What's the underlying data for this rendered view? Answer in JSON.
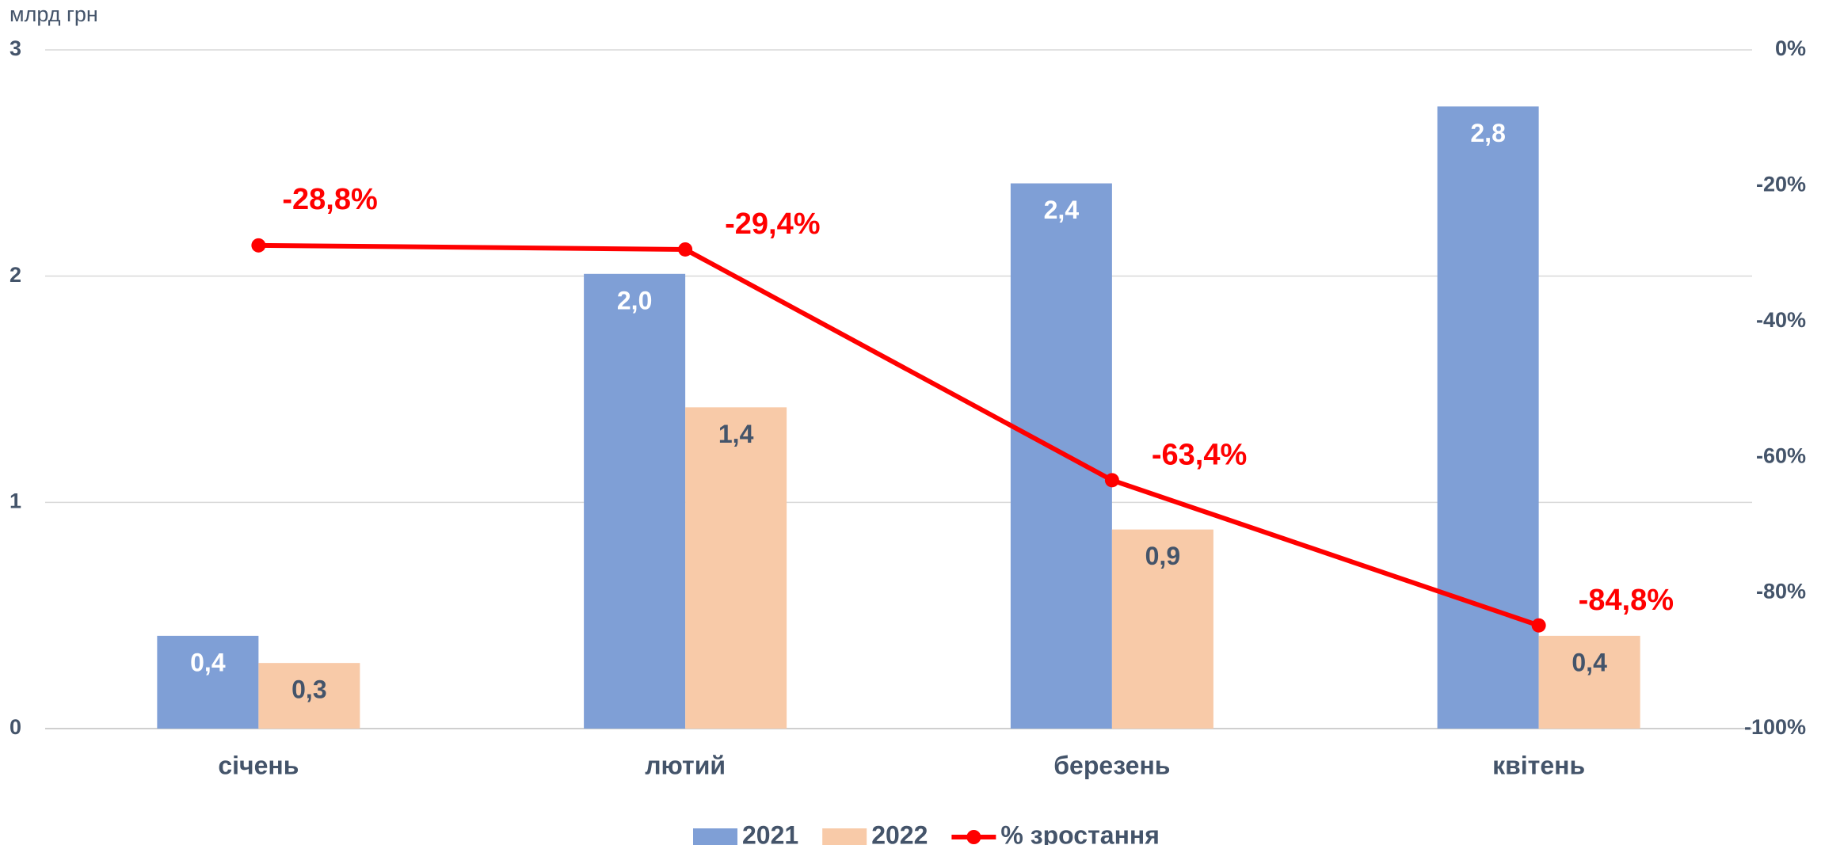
{
  "chart_data": {
    "type": "bar",
    "y_label": "млрд грн",
    "categories": [
      "січень",
      "лютий",
      "березень",
      "квітень"
    ],
    "series": [
      {
        "name": "2021",
        "color": "#7f9fd6",
        "values": [
          0.41,
          2.01,
          2.41,
          2.75
        ],
        "value_labels": [
          "0,4",
          "2,0",
          "2,4",
          "2,8"
        ]
      },
      {
        "name": "2022",
        "color": "#f8caa8",
        "values": [
          0.29,
          1.42,
          0.88,
          0.41
        ],
        "value_labels": [
          "0,3",
          "1,4",
          "0,9",
          "0,4"
        ]
      },
      {
        "name": "% зростання",
        "type": "line",
        "axis": "y2",
        "color": "#ff0000",
        "values": [
          -28.8,
          -29.4,
          -63.4,
          -84.8
        ],
        "value_labels": [
          "-28,8%",
          "-29,4%",
          "-63,4%",
          "-84,8%"
        ]
      }
    ],
    "ylim": [
      0,
      3
    ],
    "yticks": [
      0,
      1,
      2,
      3
    ],
    "y2lim": [
      -100,
      0
    ],
    "y2ticks": [
      {
        "value": -100,
        "label": "-100%"
      },
      {
        "value": -80,
        "label": "-80%"
      },
      {
        "value": -60,
        "label": "-60%"
      },
      {
        "value": -40,
        "label": "-40%"
      },
      {
        "value": -20,
        "label": "-20%"
      },
      {
        "value": 0,
        "label": "0%"
      }
    ],
    "grid": true,
    "legend": "bottom"
  }
}
